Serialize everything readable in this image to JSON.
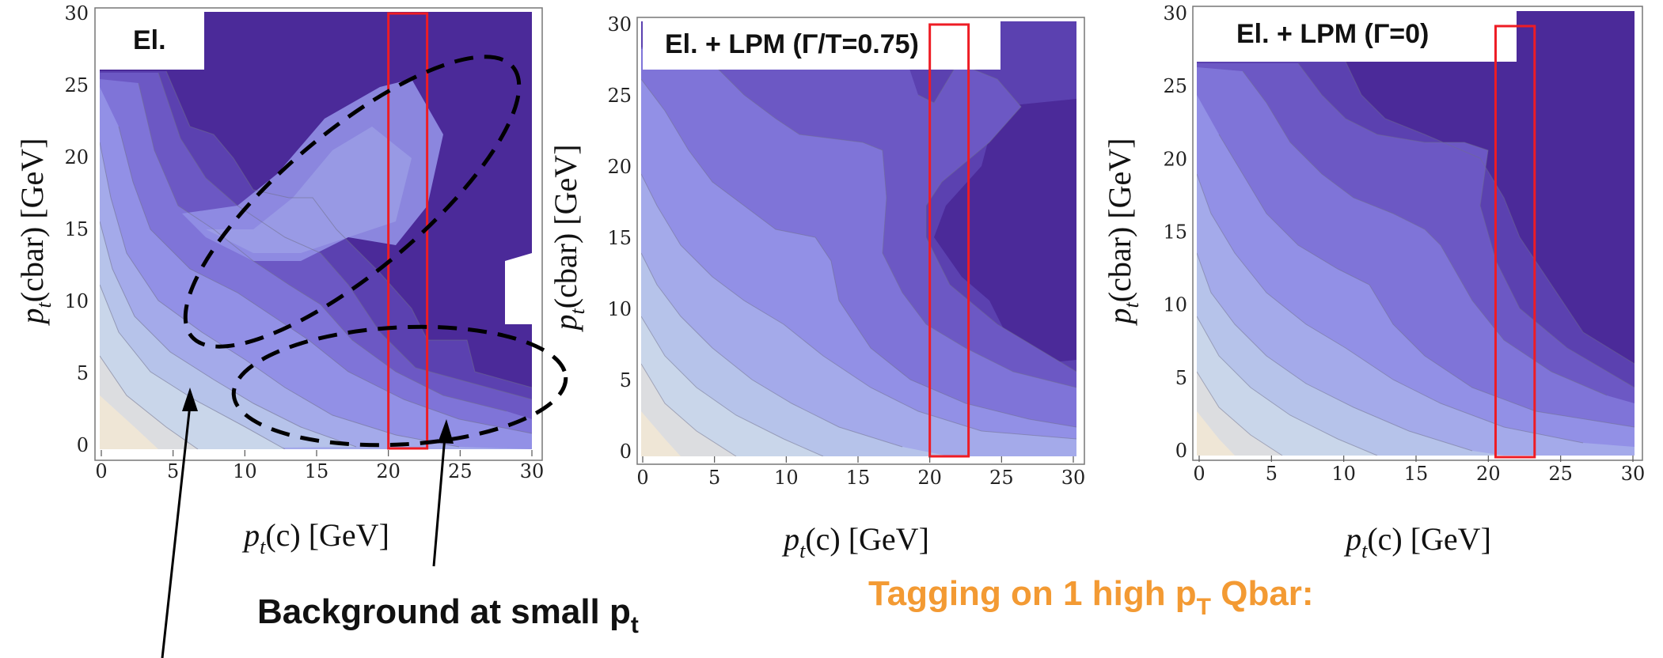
{
  "chart_data": [
    {
      "type": "heatmap",
      "title": "El.",
      "xlabel": "p_t(c) [GeV]",
      "ylabel": "p_t(cbar) [GeV]",
      "xlim": [
        0,
        30
      ],
      "ylim": [
        0,
        30
      ],
      "xticks": [
        0,
        5,
        10,
        15,
        20,
        25,
        30
      ],
      "yticks": [
        0,
        5,
        10,
        15,
        20,
        25,
        30
      ],
      "contour_levels": 9,
      "highlight_band_x": [
        20,
        22.7
      ],
      "annotations": [
        {
          "shape": "dashed-ellipse",
          "label": "diagonal"
        },
        {
          "shape": "dashed-ellipse",
          "label": "low pt(cbar)"
        }
      ]
    },
    {
      "type": "heatmap",
      "title": "El. + LPM (Γ/T=0.75)",
      "xlabel": "p_t(c) [GeV]",
      "ylabel": "p_t(cbar) [GeV]",
      "xlim": [
        0,
        30
      ],
      "ylim": [
        0,
        30
      ],
      "xticks": [
        0,
        5,
        10,
        15,
        20,
        25,
        30
      ],
      "yticks": [
        0,
        5,
        10,
        15,
        20,
        25,
        30
      ],
      "contour_levels": 9,
      "highlight_band_x": [
        20,
        22.7
      ]
    },
    {
      "type": "heatmap",
      "title": "El. + LPM (Γ=0)",
      "xlabel": "p_t(c) [GeV]",
      "ylabel": "p_t(cbar) [GeV]",
      "xlim": [
        0,
        30
      ],
      "ylim": [
        0,
        30
      ],
      "xticks": [
        0,
        5,
        10,
        15,
        20,
        25,
        30
      ],
      "yticks": [
        0,
        5,
        10,
        15,
        20,
        25,
        30
      ],
      "contour_levels": 9,
      "highlight_band_x": [
        20.5,
        23.2
      ]
    }
  ],
  "annotation_text": {
    "background": "Background at small p",
    "background_sub": "t",
    "tagging": "Tagging on 1 high p",
    "tagging_sub": "T",
    "tagging_tail": " Qbar:"
  },
  "colors": {
    "contour_scale": [
      "#efe6d6",
      "#c9d6ea",
      "#b6c3ea",
      "#a4aaea",
      "#9290e6",
      "#7f74d8",
      "#6c58c4",
      "#5b41b0",
      "#4b2a99"
    ],
    "highlight": "#ee1c24",
    "annotation_orange": "#f39a33"
  }
}
